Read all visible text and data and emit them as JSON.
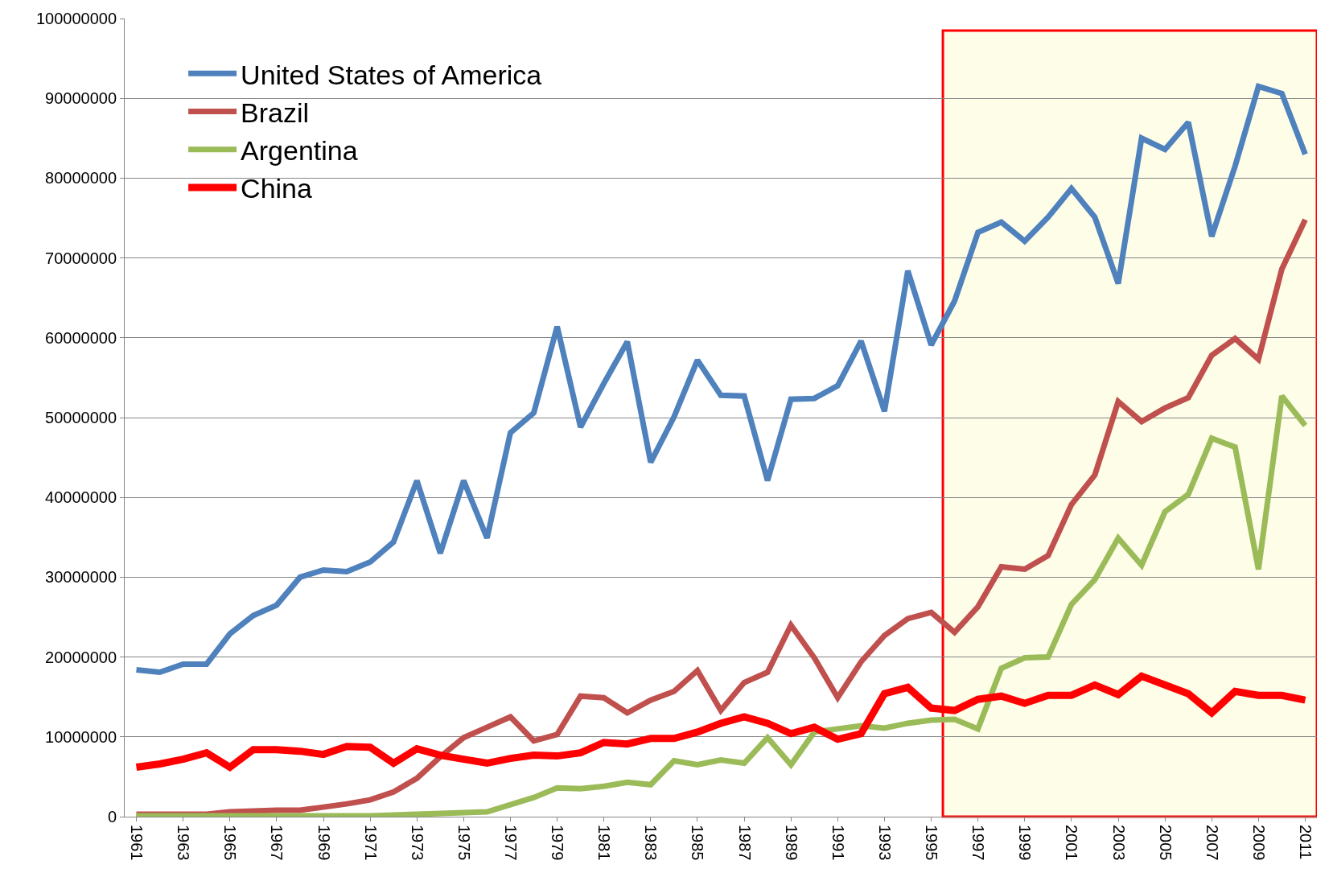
{
  "chart_data": {
    "type": "line",
    "x": [
      1961,
      1962,
      1963,
      1964,
      1965,
      1966,
      1967,
      1968,
      1969,
      1970,
      1971,
      1972,
      1973,
      1974,
      1975,
      1976,
      1977,
      1978,
      1979,
      1980,
      1981,
      1982,
      1983,
      1984,
      1985,
      1986,
      1987,
      1988,
      1989,
      1990,
      1991,
      1992,
      1993,
      1994,
      1995,
      1996,
      1997,
      1998,
      1999,
      2000,
      2001,
      2002,
      2003,
      2004,
      2005,
      2006,
      2007,
      2008,
      2009,
      2010,
      2011
    ],
    "series": [
      {
        "name": "United States of America",
        "color": "#4f81bd",
        "values": [
          18400000.0,
          18100000.0,
          19100000.0,
          19100000.0,
          22900000.0,
          25200000.0,
          26500000.0,
          30000000.0,
          30900000.0,
          30700000.0,
          31900000.0,
          34400000.0,
          42100000.0,
          33000000.0,
          42100000.0,
          34900000.0,
          48100000.0,
          50600000.0,
          61400000.0,
          48800000.0,
          54300000.0,
          59500000.0,
          44400000.0,
          50100000.0,
          57200000.0,
          52800000.0,
          52700000.0,
          42100000.0,
          52300000.0,
          52400000.0,
          54000000.0,
          59600000.0,
          50800000.0,
          68400000.0,
          59100000.0,
          64600000.0,
          73200000.0,
          74500000.0,
          72100000.0,
          75100000.0,
          78700000.0,
          75100000.0,
          66800000.0,
          85000000.0,
          83600000.0,
          87000000.0,
          72700000.0,
          81500000.0,
          91500000.0,
          90600000.0,
          83000000.0
        ]
      },
      {
        "name": "Brazil",
        "color": "#c0504d",
        "values": [
          300000.0,
          300000.0,
          300000.0,
          300000.0,
          600000.0,
          700000.0,
          800000.0,
          800000.0,
          1200000.0,
          1600000.0,
          2100000.0,
          3100000.0,
          4800000.0,
          7500000.0,
          9900000.0,
          11200000.0,
          12500000.0,
          9500000.0,
          10300000.0,
          15100000.0,
          14900000.0,
          13000000.0,
          14600000.0,
          15700000.0,
          18300000.0,
          13300000.0,
          16800000.0,
          18100000.0,
          24000000.0,
          19900000.0,
          14900000.0,
          19400000.0,
          22700000.0,
          24800000.0,
          25600000.0,
          23100000.0,
          26300000.0,
          31300000.0,
          31000000.0,
          32700000.0,
          39100000.0,
          42800000.0,
          52000000.0,
          49500000.0,
          51200000.0,
          52500000.0,
          57800000.0,
          59900000.0,
          57300000.0,
          68600000.0,
          74800000.0
        ]
      },
      {
        "name": "Argentina",
        "color": "#9bbb59",
        "values": [
          100000.0,
          100000.0,
          100000.0,
          100000.0,
          100000.0,
          100000.0,
          100000.0,
          100000.0,
          100000.0,
          100000.0,
          100000.0,
          200000.0,
          300000.0,
          400000.0,
          500000.0,
          600000.0,
          1500000.0,
          2400000.0,
          3600000.0,
          3500000.0,
          3800000.0,
          4300000.0,
          4000000.0,
          7000000.0,
          6500000.0,
          7100000.0,
          6700000.0,
          9900000.0,
          6500000.0,
          10600000.0,
          11000000.0,
          11400000.0,
          11100000.0,
          11700000.0,
          12100000.0,
          12200000.0,
          11000000.0,
          18600000.0,
          19900000.0,
          20000000.0,
          26600000.0,
          29700000.0,
          34900000.0,
          31500000.0,
          38200000.0,
          40400000.0,
          47400000.0,
          46300000.0,
          31000000.0,
          52700000.0,
          49000000.0
        ]
      },
      {
        "name": "China",
        "color": "#ff0000",
        "values": [
          6200000.0,
          6600000.0,
          7200000.0,
          8000000.0,
          6200000.0,
          8400000.0,
          8400000.0,
          8200000.0,
          7800000.0,
          8800000.0,
          8700000.0,
          6700000.0,
          8500000.0,
          7700000.0,
          7200000.0,
          6700000.0,
          7300000.0,
          7700000.0,
          7600000.0,
          8000000.0,
          9300000.0,
          9100000.0,
          9800000.0,
          9800000.0,
          10600000.0,
          11700000.0,
          12500000.0,
          11700000.0,
          10400000.0,
          11200000.0,
          9700000.0,
          10400000.0,
          15400000.0,
          16200000.0,
          13600000.0,
          13300000.0,
          14700000.0,
          15100000.0,
          14200000.0,
          15200000.0,
          15200000.0,
          16500000.0,
          15300000.0,
          17600000.0,
          16500000.0,
          15400000.0,
          13000000.0,
          15700000.0,
          15200000.0,
          15200000.0,
          14600000.0
        ]
      }
    ],
    "xlim": [
      1960.5,
      2011.5
    ],
    "xticks": [
      1961,
      1963,
      1965,
      1967,
      1969,
      1971,
      1973,
      1975,
      1977,
      1979,
      1981,
      1983,
      1985,
      1987,
      1989,
      1991,
      1993,
      1995,
      1997,
      1999,
      2001,
      2003,
      2005,
      2007,
      2009,
      2011
    ],
    "ylim": [
      0,
      100000000
    ],
    "yticks": [
      0,
      10000000,
      20000000,
      30000000,
      40000000,
      50000000,
      60000000,
      70000000,
      80000000,
      90000000,
      100000000
    ],
    "bands": [
      {
        "axis": "x",
        "from": 1995.5,
        "to": 2011.5,
        "color": "#ff0000"
      }
    ],
    "grid": "y",
    "legend": "top left",
    "marker": "none",
    "line_style": "solid"
  }
}
